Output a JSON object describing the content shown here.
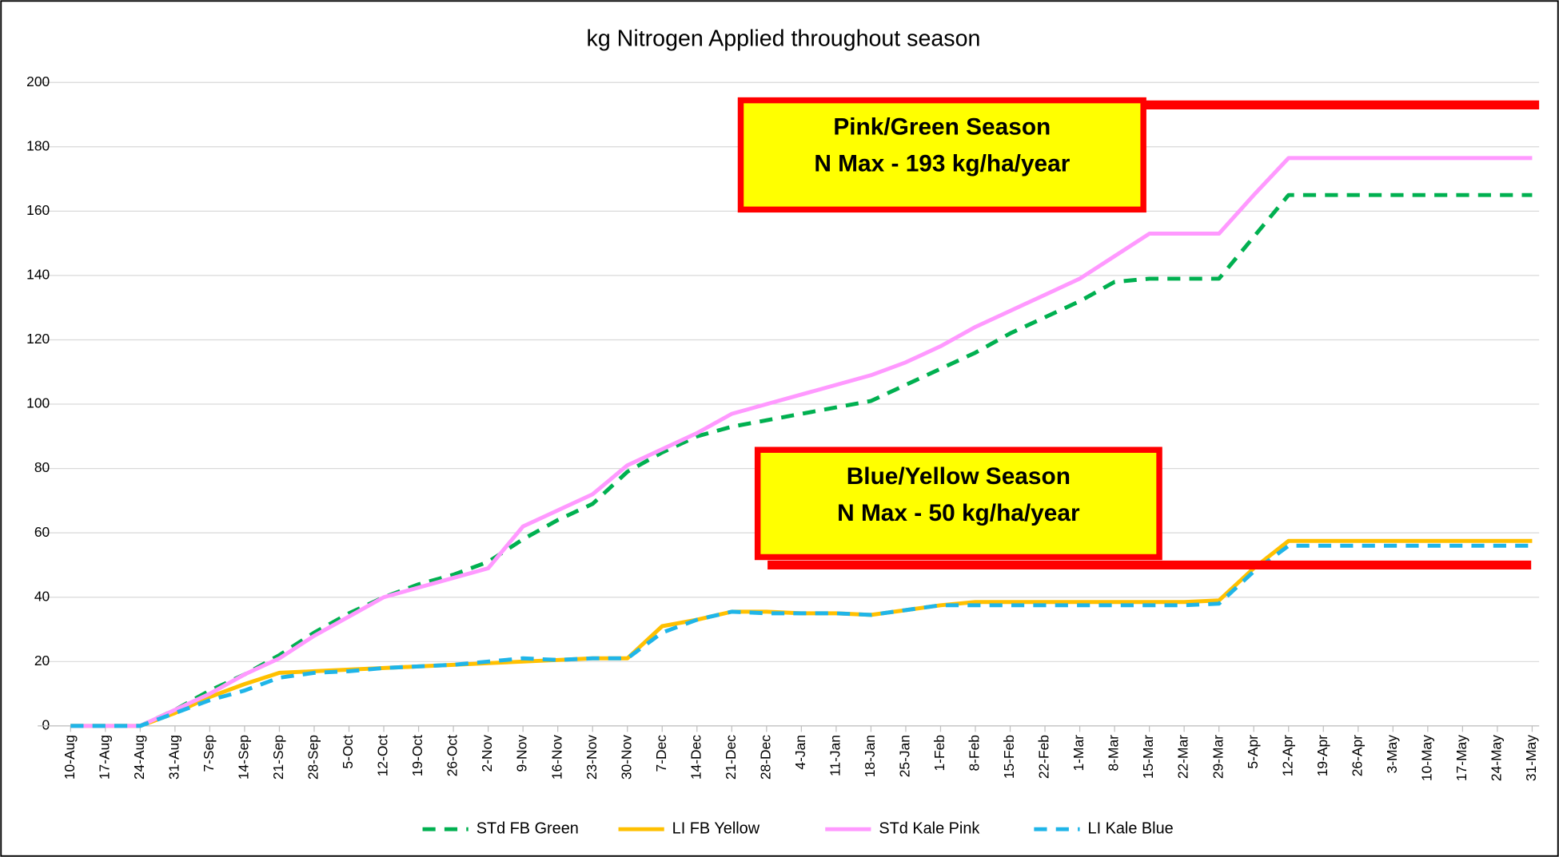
{
  "chart_data": {
    "type": "line",
    "title": "kg Nitrogen Applied throughout season",
    "categories": [
      "10-Aug",
      "17-Aug",
      "24-Aug",
      "31-Aug",
      "7-Sep",
      "14-Sep",
      "21-Sep",
      "28-Sep",
      "5-Oct",
      "12-Oct",
      "19-Oct",
      "26-Oct",
      "2-Nov",
      "9-Nov",
      "16-Nov",
      "23-Nov",
      "30-Nov",
      "7-Dec",
      "14-Dec",
      "21-Dec",
      "28-Dec",
      "4-Jan",
      "11-Jan",
      "18-Jan",
      "25-Jan",
      "1-Feb",
      "8-Feb",
      "15-Feb",
      "22-Feb",
      "1-Mar",
      "8-Mar",
      "15-Mar",
      "22-Mar",
      "29-Mar",
      "5-Apr",
      "12-Apr",
      "19-Apr",
      "26-Apr",
      "3-May",
      "10-May",
      "17-May",
      "24-May",
      "31-May"
    ],
    "series": [
      {
        "name": "STd FB Green",
        "color": "#00b050",
        "dashed": true,
        "values": [
          0,
          0,
          0,
          5,
          11,
          16,
          22,
          29,
          35,
          40,
          44,
          47,
          51,
          58,
          64,
          69,
          79,
          85,
          90,
          93,
          95,
          97,
          99,
          101,
          106,
          111,
          116,
          122,
          127,
          132,
          138,
          139,
          139,
          139,
          152,
          165,
          165,
          165,
          165,
          165,
          165,
          165,
          165
        ]
      },
      {
        "name": "LI FB Yellow",
        "color": "#ffc000",
        "dashed": false,
        "values": [
          0,
          0,
          0,
          4,
          9,
          13,
          16.5,
          17,
          17.5,
          18,
          18.5,
          19,
          19.5,
          20,
          20.5,
          21,
          21,
          31,
          33,
          35.5,
          35.5,
          35,
          35,
          34.5,
          36,
          37.5,
          38.5,
          38.5,
          38.5,
          38.5,
          38.5,
          38.5,
          38.5,
          39,
          49,
          57.5,
          57.5,
          57.5,
          57.5,
          57.5,
          57.5,
          57.5,
          57.5
        ]
      },
      {
        "name": "STd Kale Pink",
        "color": "#ff99ff",
        "dashed": false,
        "values": [
          0,
          0,
          0,
          5,
          10,
          16,
          21,
          28,
          34,
          40,
          43,
          46,
          49,
          62,
          67,
          72,
          81,
          86,
          91,
          97,
          100,
          103,
          106,
          109,
          113,
          118,
          124,
          129,
          134,
          139,
          146,
          153,
          153,
          153,
          165,
          176.5,
          176.5,
          176.5,
          176.5,
          176.5,
          176.5,
          176.5,
          176.5
        ]
      },
      {
        "name": "LI Kale Blue",
        "color": "#1fb5e8",
        "dashed": true,
        "values": [
          0,
          0,
          0,
          4,
          8,
          11,
          15,
          16.5,
          17,
          18,
          18.5,
          19,
          20,
          21,
          20.5,
          21,
          21,
          29,
          33,
          35.5,
          35,
          35,
          35,
          34.5,
          36,
          37.5,
          37.5,
          37.5,
          37.5,
          37.5,
          37.5,
          37.5,
          37.5,
          38,
          48,
          56,
          56,
          56,
          56,
          56,
          56,
          56,
          56
        ]
      }
    ],
    "ylim": [
      0,
      200
    ],
    "yticks": [
      0,
      20,
      40,
      60,
      80,
      100,
      120,
      140,
      160,
      180,
      200
    ],
    "grid": true,
    "legend": "bottom",
    "reference_lines": [
      {
        "value": 193,
        "color": "#ff0000"
      },
      {
        "value": 50,
        "color": "#ff0000"
      }
    ],
    "annotations": [
      {
        "lines": [
          "Pink/Green Season",
          "N Max - 193 kg/ha/year"
        ],
        "fill": "#ffff00",
        "border": "#ff0000"
      },
      {
        "lines": [
          "Blue/Yellow Season",
          "N Max - 50 kg/ha/year"
        ],
        "fill": "#ffff00",
        "border": "#ff0000"
      }
    ]
  }
}
